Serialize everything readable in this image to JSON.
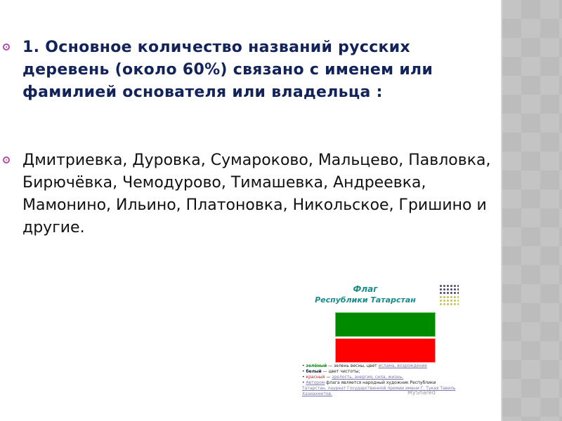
{
  "slide": {
    "paragraph1": "1. Основное количество названий русских деревень (около 60%) связано с именем или фамилией основателя или владельца :",
    "paragraph2": " Дмитриевка, Дуровка, Сумароково, Мальцево, Павловка, Бирючёвка, Чемодурово, Тимашевка, Андреевка, Мамонино, Ильино, Платоновка, Никольское, Гришино и другие.",
    "bullet_icon": "circle-bullet-icon",
    "colors": {
      "heading": "#12235a",
      "bullet": "#b04fa8",
      "sidebar": "#c4c4c4"
    }
  },
  "picture": {
    "title_line1": "Флаг",
    "title_line2": "Республики Татарстан",
    "flag_colors": {
      "green": "#008a00",
      "red": "#ff0000"
    },
    "notes": [
      {
        "term": "зелёный",
        "text": " — зелень весны, цвет ",
        "links": "ислама, возрождение"
      },
      {
        "term": "белый",
        "text": " — цвет чистоты;",
        "links": ""
      },
      {
        "term": "красный",
        "text": " — ",
        "links": "зрелость, энергия, сила, жизнь."
      },
      {
        "term": "Автором",
        "text": " флага является народный художник Республики ",
        "links": "Татарстан, лауреат Государственной премии имени Г. Тукая Тавиль Хазиахметов."
      }
    ],
    "watermark": "MyShared"
  }
}
